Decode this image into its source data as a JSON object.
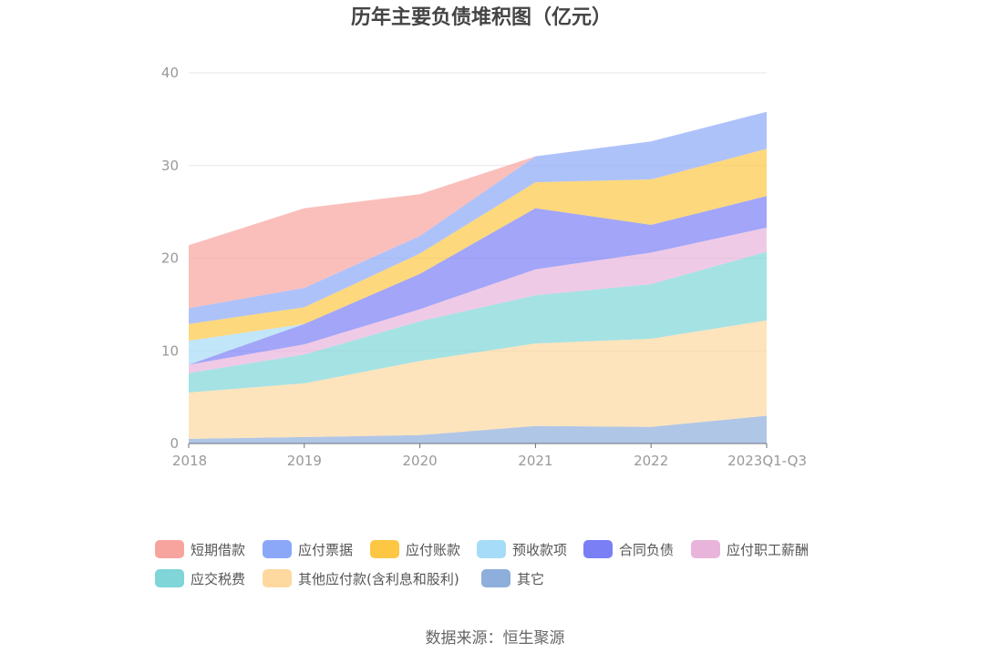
{
  "chart_data": {
    "type": "area",
    "stacked": true,
    "title": "历年主要负债堆积图（亿元）",
    "xlabel": "",
    "ylabel": "",
    "categories": [
      "2018",
      "2019",
      "2020",
      "2021",
      "2022",
      "2023Q1-Q3"
    ],
    "ylim": [
      0,
      40
    ],
    "yticks": [
      0,
      10,
      20,
      30,
      40
    ],
    "grid": true,
    "legend_position": "bottom",
    "series": [
      {
        "name": "其它",
        "color": "#8eaedc",
        "values": [
          0.5,
          0.7,
          0.9,
          1.9,
          1.8,
          3.0
        ]
      },
      {
        "name": "其他应付款(含利息和股利)",
        "color": "#fdd9a0",
        "values": [
          5.0,
          5.8,
          8.0,
          8.9,
          9.5,
          10.3
        ]
      },
      {
        "name": "应交税费",
        "color": "#7fd5d8",
        "values": [
          2.1,
          3.1,
          4.3,
          5.2,
          5.9,
          7.4
        ]
      },
      {
        "name": "应付职工薪酬",
        "color": "#e8b4dc",
        "values": [
          0.9,
          1.1,
          1.3,
          2.8,
          3.4,
          2.6
        ]
      },
      {
        "name": "合同负债",
        "color": "#7b7ff5",
        "values": [
          0.0,
          2.2,
          3.8,
          6.6,
          3.0,
          3.4
        ]
      },
      {
        "name": "预收款项",
        "color": "#a6dcf7",
        "values": [
          2.6,
          0.0,
          0.0,
          0.0,
          0.0,
          0.0
        ]
      },
      {
        "name": "应付账款",
        "color": "#fdc744",
        "values": [
          1.8,
          1.8,
          2.2,
          2.8,
          4.9,
          5.1
        ]
      },
      {
        "name": "应付票据",
        "color": "#8ba8f8",
        "values": [
          1.7,
          2.1,
          1.9,
          2.8,
          4.1,
          4.0
        ]
      },
      {
        "name": "短期借款",
        "color": "#f8a49e",
        "values": [
          6.8,
          8.6,
          4.5,
          0.0,
          0.0,
          0.0
        ]
      }
    ],
    "legend_order": [
      "短期借款",
      "应付票据",
      "应付账款",
      "预收款项",
      "合同负债",
      "应付职工薪酬",
      "应交税费",
      "其他应付款(含利息和股利)",
      "其它"
    ]
  },
  "source": "数据来源：恒生聚源"
}
